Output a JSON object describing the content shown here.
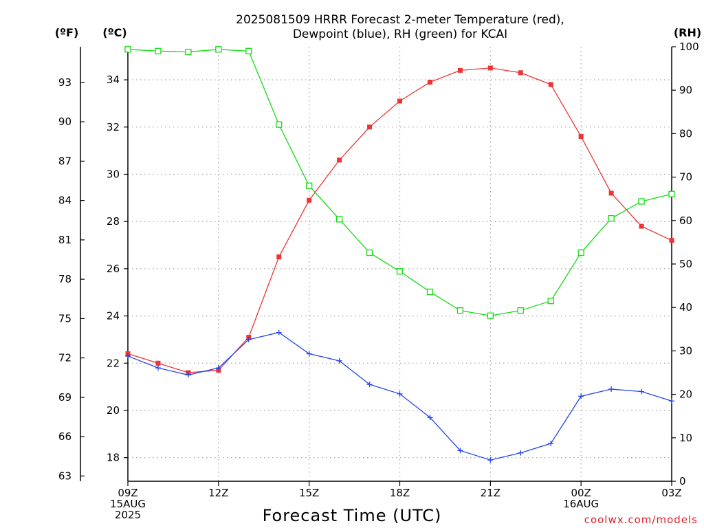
{
  "chart_data": {
    "type": "line",
    "title_line1": "2025081509 HRRR Forecast 2-meter Temperature (red),",
    "title_line2": "Dewpoint (blue), RH (green) for KCAI",
    "xlabel": "Forecast Time (UTC)",
    "credit": "coolwx.com/models",
    "units": {
      "fahrenheit": "(ºF)",
      "celsius": "(ºC)",
      "rh": "(RH)"
    },
    "x_hours": [
      0,
      1,
      2,
      3,
      4,
      5,
      6,
      7,
      8,
      9,
      10,
      11,
      12,
      13,
      14,
      15,
      16,
      17,
      18
    ],
    "x_ticks": [
      {
        "hour": 0,
        "lines": [
          "09Z",
          "15AUG",
          "2025"
        ]
      },
      {
        "hour": 3,
        "lines": [
          "12Z"
        ]
      },
      {
        "hour": 6,
        "lines": [
          "15Z"
        ]
      },
      {
        "hour": 9,
        "lines": [
          "18Z"
        ]
      },
      {
        "hour": 12,
        "lines": [
          "21Z"
        ]
      },
      {
        "hour": 15,
        "lines": [
          "00Z",
          "16AUG"
        ]
      },
      {
        "hour": 18,
        "lines": [
          "03Z"
        ]
      }
    ],
    "celsius_ticks": [
      18,
      20,
      22,
      24,
      26,
      28,
      30,
      32,
      34
    ],
    "fahrenheit_ticks": [
      63,
      66,
      69,
      72,
      75,
      78,
      81,
      84,
      87,
      90,
      93
    ],
    "rh_ticks": [
      0,
      10,
      20,
      30,
      40,
      50,
      60,
      70,
      80,
      90,
      100
    ],
    "ylim_celsius": [
      17.0,
      35.4
    ],
    "ylim_rh": [
      0,
      100
    ],
    "grid": true,
    "series": [
      {
        "name": "2-meter Temperature (red)",
        "color": "#ee3333",
        "axis": "celsius",
        "marker": "filled-square",
        "values": [
          22.4,
          22.0,
          21.6,
          21.7,
          23.1,
          26.5,
          28.9,
          30.6,
          32.0,
          33.1,
          33.9,
          34.4,
          34.5,
          34.3,
          33.8,
          31.6,
          29.2,
          27.8,
          27.2
        ]
      },
      {
        "name": "Dewpoint (blue)",
        "color": "#2244ee",
        "axis": "celsius",
        "marker": "plus",
        "values": [
          22.3,
          21.8,
          21.5,
          21.8,
          23.0,
          23.3,
          22.4,
          22.1,
          21.1,
          20.7,
          19.7,
          18.3,
          17.9,
          18.2,
          18.6,
          20.6,
          20.9,
          20.8,
          20.4
        ]
      },
      {
        "name": "RH (green)",
        "color": "#11dd11",
        "axis": "rh",
        "marker": "open-square",
        "values": [
          99.4,
          99.0,
          98.8,
          99.4,
          99.0,
          82.1,
          68.0,
          60.3,
          52.6,
          48.3,
          43.6,
          39.3,
          38.1,
          39.3,
          41.5,
          52.6,
          60.5,
          64.4,
          66.1
        ]
      }
    ]
  }
}
